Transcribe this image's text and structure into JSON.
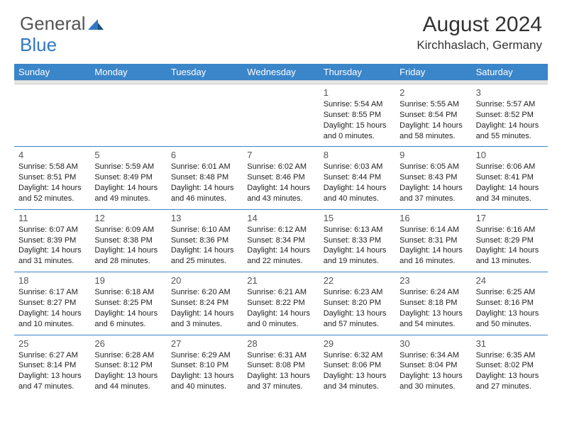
{
  "brand": {
    "part1": "General",
    "part2": "Blue"
  },
  "title": "August 2024",
  "location": "Kirchhaslach, Germany",
  "header_bg": "#3b85c9",
  "header_text": "#ffffff",
  "divider_color": "#3b85c9",
  "sep_bg": "#e6e6e6",
  "days_of_week": [
    "Sunday",
    "Monday",
    "Tuesday",
    "Wednesday",
    "Thursday",
    "Friday",
    "Saturday"
  ],
  "weeks": [
    [
      {
        "num": "",
        "sunrise": "",
        "sunset": "",
        "daylight": ""
      },
      {
        "num": "",
        "sunrise": "",
        "sunset": "",
        "daylight": ""
      },
      {
        "num": "",
        "sunrise": "",
        "sunset": "",
        "daylight": ""
      },
      {
        "num": "",
        "sunrise": "",
        "sunset": "",
        "daylight": ""
      },
      {
        "num": "1",
        "sunrise": "Sunrise: 5:54 AM",
        "sunset": "Sunset: 8:55 PM",
        "daylight": "Daylight: 15 hours and 0 minutes."
      },
      {
        "num": "2",
        "sunrise": "Sunrise: 5:55 AM",
        "sunset": "Sunset: 8:54 PM",
        "daylight": "Daylight: 14 hours and 58 minutes."
      },
      {
        "num": "3",
        "sunrise": "Sunrise: 5:57 AM",
        "sunset": "Sunset: 8:52 PM",
        "daylight": "Daylight: 14 hours and 55 minutes."
      }
    ],
    [
      {
        "num": "4",
        "sunrise": "Sunrise: 5:58 AM",
        "sunset": "Sunset: 8:51 PM",
        "daylight": "Daylight: 14 hours and 52 minutes."
      },
      {
        "num": "5",
        "sunrise": "Sunrise: 5:59 AM",
        "sunset": "Sunset: 8:49 PM",
        "daylight": "Daylight: 14 hours and 49 minutes."
      },
      {
        "num": "6",
        "sunrise": "Sunrise: 6:01 AM",
        "sunset": "Sunset: 8:48 PM",
        "daylight": "Daylight: 14 hours and 46 minutes."
      },
      {
        "num": "7",
        "sunrise": "Sunrise: 6:02 AM",
        "sunset": "Sunset: 8:46 PM",
        "daylight": "Daylight: 14 hours and 43 minutes."
      },
      {
        "num": "8",
        "sunrise": "Sunrise: 6:03 AM",
        "sunset": "Sunset: 8:44 PM",
        "daylight": "Daylight: 14 hours and 40 minutes."
      },
      {
        "num": "9",
        "sunrise": "Sunrise: 6:05 AM",
        "sunset": "Sunset: 8:43 PM",
        "daylight": "Daylight: 14 hours and 37 minutes."
      },
      {
        "num": "10",
        "sunrise": "Sunrise: 6:06 AM",
        "sunset": "Sunset: 8:41 PM",
        "daylight": "Daylight: 14 hours and 34 minutes."
      }
    ],
    [
      {
        "num": "11",
        "sunrise": "Sunrise: 6:07 AM",
        "sunset": "Sunset: 8:39 PM",
        "daylight": "Daylight: 14 hours and 31 minutes."
      },
      {
        "num": "12",
        "sunrise": "Sunrise: 6:09 AM",
        "sunset": "Sunset: 8:38 PM",
        "daylight": "Daylight: 14 hours and 28 minutes."
      },
      {
        "num": "13",
        "sunrise": "Sunrise: 6:10 AM",
        "sunset": "Sunset: 8:36 PM",
        "daylight": "Daylight: 14 hours and 25 minutes."
      },
      {
        "num": "14",
        "sunrise": "Sunrise: 6:12 AM",
        "sunset": "Sunset: 8:34 PM",
        "daylight": "Daylight: 14 hours and 22 minutes."
      },
      {
        "num": "15",
        "sunrise": "Sunrise: 6:13 AM",
        "sunset": "Sunset: 8:33 PM",
        "daylight": "Daylight: 14 hours and 19 minutes."
      },
      {
        "num": "16",
        "sunrise": "Sunrise: 6:14 AM",
        "sunset": "Sunset: 8:31 PM",
        "daylight": "Daylight: 14 hours and 16 minutes."
      },
      {
        "num": "17",
        "sunrise": "Sunrise: 6:16 AM",
        "sunset": "Sunset: 8:29 PM",
        "daylight": "Daylight: 14 hours and 13 minutes."
      }
    ],
    [
      {
        "num": "18",
        "sunrise": "Sunrise: 6:17 AM",
        "sunset": "Sunset: 8:27 PM",
        "daylight": "Daylight: 14 hours and 10 minutes."
      },
      {
        "num": "19",
        "sunrise": "Sunrise: 6:18 AM",
        "sunset": "Sunset: 8:25 PM",
        "daylight": "Daylight: 14 hours and 6 minutes."
      },
      {
        "num": "20",
        "sunrise": "Sunrise: 6:20 AM",
        "sunset": "Sunset: 8:24 PM",
        "daylight": "Daylight: 14 hours and 3 minutes."
      },
      {
        "num": "21",
        "sunrise": "Sunrise: 6:21 AM",
        "sunset": "Sunset: 8:22 PM",
        "daylight": "Daylight: 14 hours and 0 minutes."
      },
      {
        "num": "22",
        "sunrise": "Sunrise: 6:23 AM",
        "sunset": "Sunset: 8:20 PM",
        "daylight": "Daylight: 13 hours and 57 minutes."
      },
      {
        "num": "23",
        "sunrise": "Sunrise: 6:24 AM",
        "sunset": "Sunset: 8:18 PM",
        "daylight": "Daylight: 13 hours and 54 minutes."
      },
      {
        "num": "24",
        "sunrise": "Sunrise: 6:25 AM",
        "sunset": "Sunset: 8:16 PM",
        "daylight": "Daylight: 13 hours and 50 minutes."
      }
    ],
    [
      {
        "num": "25",
        "sunrise": "Sunrise: 6:27 AM",
        "sunset": "Sunset: 8:14 PM",
        "daylight": "Daylight: 13 hours and 47 minutes."
      },
      {
        "num": "26",
        "sunrise": "Sunrise: 6:28 AM",
        "sunset": "Sunset: 8:12 PM",
        "daylight": "Daylight: 13 hours and 44 minutes."
      },
      {
        "num": "27",
        "sunrise": "Sunrise: 6:29 AM",
        "sunset": "Sunset: 8:10 PM",
        "daylight": "Daylight: 13 hours and 40 minutes."
      },
      {
        "num": "28",
        "sunrise": "Sunrise: 6:31 AM",
        "sunset": "Sunset: 8:08 PM",
        "daylight": "Daylight: 13 hours and 37 minutes."
      },
      {
        "num": "29",
        "sunrise": "Sunrise: 6:32 AM",
        "sunset": "Sunset: 8:06 PM",
        "daylight": "Daylight: 13 hours and 34 minutes."
      },
      {
        "num": "30",
        "sunrise": "Sunrise: 6:34 AM",
        "sunset": "Sunset: 8:04 PM",
        "daylight": "Daylight: 13 hours and 30 minutes."
      },
      {
        "num": "31",
        "sunrise": "Sunrise: 6:35 AM",
        "sunset": "Sunset: 8:02 PM",
        "daylight": "Daylight: 13 hours and 27 minutes."
      }
    ]
  ]
}
